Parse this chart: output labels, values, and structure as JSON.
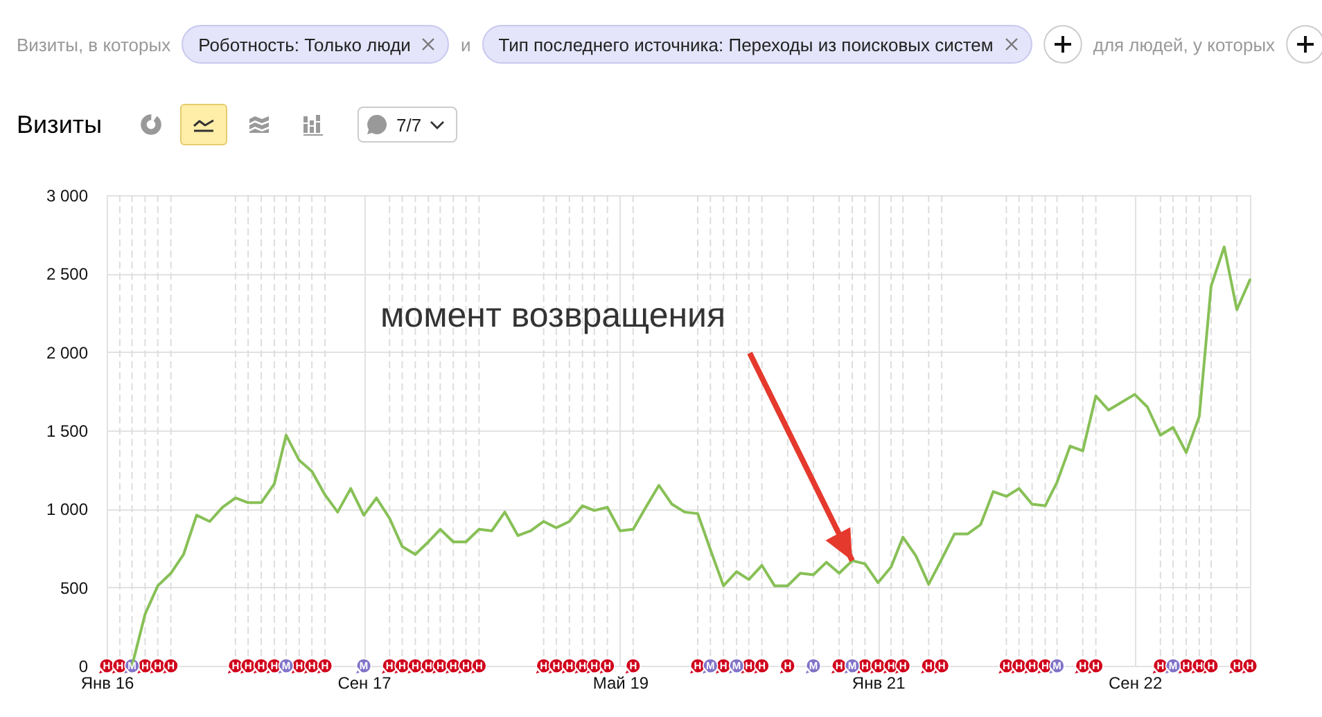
{
  "chart_data": {
    "type": "line",
    "title": "Визиты",
    "x": [
      "2016-03",
      "2016-04",
      "2016-05",
      "2016-06",
      "2016-07",
      "2016-08",
      "2016-09",
      "2016-10",
      "2016-11",
      "2016-12",
      "2017-01",
      "2017-02",
      "2017-03",
      "2017-04",
      "2017-05",
      "2017-06",
      "2017-07",
      "2017-08",
      "2017-09",
      "2017-10",
      "2017-11",
      "2017-12",
      "2018-01",
      "2018-02",
      "2018-03",
      "2018-04",
      "2018-05",
      "2018-06",
      "2018-07",
      "2018-08",
      "2018-09",
      "2018-10",
      "2018-11",
      "2018-12",
      "2019-01",
      "2019-02",
      "2019-03",
      "2019-04",
      "2019-05",
      "2019-06",
      "2019-07",
      "2019-08",
      "2019-09",
      "2019-10",
      "2019-11",
      "2019-12",
      "2020-01",
      "2020-02",
      "2020-03",
      "2020-04",
      "2020-05",
      "2020-06",
      "2020-07",
      "2020-08",
      "2020-09",
      "2020-10",
      "2020-11",
      "2020-12",
      "2021-01",
      "2021-02",
      "2021-03",
      "2021-04",
      "2021-05",
      "2021-06",
      "2021-07",
      "2021-08",
      "2021-09",
      "2021-10",
      "2021-11",
      "2021-12",
      "2022-01",
      "2022-02",
      "2022-03",
      "2022-04",
      "2022-05",
      "2022-06",
      "2022-07",
      "2022-08",
      "2022-09",
      "2022-10",
      "2022-11",
      "2022-12",
      "2023-01",
      "2023-02",
      "2023-03",
      "2023-04",
      "2023-05",
      "2023-06"
    ],
    "series": [
      {
        "type": "line",
        "color": "#88c057",
        "values": [
          0,
          330,
          510,
          590,
          710,
          960,
          920,
          1010,
          1070,
          1040,
          1040,
          1160,
          1470,
          1310,
          1240,
          1090,
          980,
          1130,
          960,
          1070,
          940,
          760,
          710,
          790,
          870,
          790,
          790,
          870,
          860,
          980,
          830,
          860,
          920,
          880,
          920,
          1020,
          990,
          1010,
          860,
          870,
          1010,
          1150,
          1030,
          980,
          970,
          740,
          510,
          600,
          550,
          640,
          510,
          510,
          590,
          580,
          660,
          590,
          670,
          650,
          530,
          630,
          820,
          700,
          520,
          680,
          840,
          840,
          900,
          1110,
          1080,
          1130,
          1030,
          1020,
          1170,
          1400,
          1370,
          1720,
          1630,
          1680,
          1730,
          1650,
          1470,
          1520,
          1360,
          1590,
          2420,
          2670,
          2270,
          2460
        ]
      },
      {
        "type": "scatter",
        "color": "#d0021b",
        "x": [
          "2016-01",
          "2016-02",
          "2016-04",
          "2016-05",
          "2016-06",
          "2016-11",
          "2016-12",
          "2017-01",
          "2017-02",
          "2017-04",
          "2017-05",
          "2017-06",
          "2017-11",
          "2017-12",
          "2018-01",
          "2018-02",
          "2018-03",
          "2018-04",
          "2018-05",
          "2018-06",
          "2018-11",
          "2018-12",
          "2019-01",
          "2019-02",
          "2019-03",
          "2019-04",
          "2019-06",
          "2019-11",
          "2020-01",
          "2020-03",
          "2020-04",
          "2020-06",
          "2020-10",
          "2020-12",
          "2021-01",
          "2021-02",
          "2021-03",
          "2021-05",
          "2021-06",
          "2021-11",
          "2021-12",
          "2022-01",
          "2022-02",
          "2022-05",
          "2022-06",
          "2022-11",
          "2023-01",
          "2023-02",
          "2023-03",
          "2023-05",
          "2023-06"
        ],
        "values": [
          0,
          0,
          0,
          0,
          0,
          0,
          0,
          0,
          0,
          0,
          0,
          0,
          0,
          0,
          0,
          0,
          0,
          0,
          0,
          0,
          0,
          0,
          0,
          0,
          0,
          0,
          0,
          0,
          0,
          0,
          0,
          0,
          0,
          0,
          0,
          0,
          0,
          0,
          0,
          0,
          0,
          0,
          0,
          0,
          0,
          0,
          0,
          0,
          0,
          0,
          0
        ],
        "value_labels": [
          "Н",
          "Н",
          "Н",
          "Н",
          "Н",
          "Н",
          "Н",
          "Н",
          "Н",
          "Н",
          "Н",
          "Н",
          "Н",
          "Н",
          "Н",
          "Н",
          "Н",
          "Н",
          "Н",
          "Н",
          "Н",
          "Н",
          "Н",
          "Н",
          "Н",
          "Н",
          "Н",
          "Н",
          "Н",
          "Н",
          "Н",
          "Н",
          "Н",
          "Н",
          "Н",
          "Н",
          "Н",
          "Н",
          "Н",
          "Н",
          "Н",
          "Н",
          "Н",
          "Н",
          "Н",
          "Н",
          "Н",
          "Н",
          "Н",
          "Н",
          "Н"
        ]
      },
      {
        "type": "scatter",
        "color": "#8073c8",
        "x": [
          "2016-03",
          "2017-03",
          "2017-09",
          "2019-12",
          "2020-02",
          "2020-08",
          "2020-11",
          "2022-03",
          "2022-12"
        ],
        "values": [
          0,
          0,
          0,
          0,
          0,
          0,
          0,
          0,
          0
        ],
        "value_labels": [
          "М",
          "М",
          "М",
          "М",
          "М",
          "М",
          "М",
          "М",
          "М"
        ]
      }
    ],
    "xlim": [
      "2016-01",
      "2023-06"
    ],
    "xticks": [
      {
        "value": "2016-01",
        "label": "Янв 16"
      },
      {
        "value": "2017-09",
        "label": "Сен 17"
      },
      {
        "value": "2019-05",
        "label": "Май 19"
      },
      {
        "value": "2021-01",
        "label": "Янв 21"
      },
      {
        "value": "2022-09",
        "label": "Сен 22"
      }
    ],
    "ylim": [
      0,
      3000
    ],
    "yticks": [
      0,
      500,
      {
        "value": 1000,
        "label": "1 000"
      },
      {
        "value": 1500,
        "label": "1 500"
      },
      {
        "value": 2000,
        "label": "2 000"
      },
      {
        "value": 2500,
        "label": "2 500"
      },
      {
        "value": 3000,
        "label": "3 000"
      }
    ],
    "grid": true,
    "ref_lines": [
      {
        "axis": "x",
        "value": "2016-02",
        "color": "#dddddd",
        "line_style": "dashed"
      },
      {
        "axis": "x",
        "value": "2016-03",
        "color": "#dddddd",
        "line_style": "dashed"
      },
      {
        "axis": "x",
        "value": "2016-04",
        "color": "#dddddd",
        "line_style": "dashed"
      },
      {
        "axis": "x",
        "value": "2016-05",
        "color": "#dddddd",
        "line_style": "dashed"
      },
      {
        "axis": "x",
        "value": "2016-06",
        "color": "#dddddd",
        "line_style": "dashed"
      },
      {
        "axis": "x",
        "value": "2016-11",
        "color": "#dddddd",
        "line_style": "dashed"
      },
      {
        "axis": "x",
        "value": "2016-12",
        "color": "#dddddd",
        "line_style": "dashed"
      },
      {
        "axis": "x",
        "value": "2017-01",
        "color": "#dddddd",
        "line_style": "dashed"
      },
      {
        "axis": "x",
        "value": "2017-02",
        "color": "#dddddd",
        "line_style": "dashed"
      },
      {
        "axis": "x",
        "value": "2017-03",
        "color": "#dddddd",
        "line_style": "dashed"
      },
      {
        "axis": "x",
        "value": "2017-04",
        "color": "#dddddd",
        "line_style": "dashed"
      },
      {
        "axis": "x",
        "value": "2017-05",
        "color": "#dddddd",
        "line_style": "dashed"
      },
      {
        "axis": "x",
        "value": "2017-06",
        "color": "#dddddd",
        "line_style": "dashed"
      },
      {
        "axis": "x",
        "value": "2017-11",
        "color": "#dddddd",
        "line_style": "dashed"
      },
      {
        "axis": "x",
        "value": "2017-12",
        "color": "#dddddd",
        "line_style": "dashed"
      },
      {
        "axis": "x",
        "value": "2018-01",
        "color": "#dddddd",
        "line_style": "dashed"
      },
      {
        "axis": "x",
        "value": "2018-02",
        "color": "#dddddd",
        "line_style": "dashed"
      },
      {
        "axis": "x",
        "value": "2018-03",
        "color": "#dddddd",
        "line_style": "dashed"
      },
      {
        "axis": "x",
        "value": "2018-04",
        "color": "#dddddd",
        "line_style": "dashed"
      },
      {
        "axis": "x",
        "value": "2018-05",
        "color": "#dddddd",
        "line_style": "dashed"
      },
      {
        "axis": "x",
        "value": "2018-06",
        "color": "#dddddd",
        "line_style": "dashed"
      },
      {
        "axis": "x",
        "value": "2018-11",
        "color": "#dddddd",
        "line_style": "dashed"
      },
      {
        "axis": "x",
        "value": "2018-12",
        "color": "#dddddd",
        "line_style": "dashed"
      },
      {
        "axis": "x",
        "value": "2019-01",
        "color": "#dddddd",
        "line_style": "dashed"
      },
      {
        "axis": "x",
        "value": "2019-02",
        "color": "#dddddd",
        "line_style": "dashed"
      },
      {
        "axis": "x",
        "value": "2019-03",
        "color": "#dddddd",
        "line_style": "dashed"
      },
      {
        "axis": "x",
        "value": "2019-04",
        "color": "#dddddd",
        "line_style": "dashed"
      },
      {
        "axis": "x",
        "value": "2019-06",
        "color": "#dddddd",
        "line_style": "dashed"
      },
      {
        "axis": "x",
        "value": "2019-11",
        "color": "#dddddd",
        "line_style": "dashed"
      },
      {
        "axis": "x",
        "value": "2019-12",
        "color": "#dddddd",
        "line_style": "dashed"
      },
      {
        "axis": "x",
        "value": "2020-01",
        "color": "#dddddd",
        "line_style": "dashed"
      },
      {
        "axis": "x",
        "value": "2020-02",
        "color": "#dddddd",
        "line_style": "dashed"
      },
      {
        "axis": "x",
        "value": "2020-03",
        "color": "#dddddd",
        "line_style": "dashed"
      },
      {
        "axis": "x",
        "value": "2020-04",
        "color": "#dddddd",
        "line_style": "dashed"
      },
      {
        "axis": "x",
        "value": "2020-06",
        "color": "#dddddd",
        "line_style": "dashed"
      },
      {
        "axis": "x",
        "value": "2020-08",
        "color": "#dddddd",
        "line_style": "dashed"
      },
      {
        "axis": "x",
        "value": "2020-10",
        "color": "#dddddd",
        "line_style": "dashed"
      },
      {
        "axis": "x",
        "value": "2020-11",
        "color": "#dddddd",
        "line_style": "dashed"
      },
      {
        "axis": "x",
        "value": "2020-12",
        "color": "#dddddd",
        "line_style": "dashed"
      },
      {
        "axis": "x",
        "value": "2021-02",
        "color": "#dddddd",
        "line_style": "dashed"
      },
      {
        "axis": "x",
        "value": "2021-03",
        "color": "#dddddd",
        "line_style": "dashed"
      },
      {
        "axis": "x",
        "value": "2021-05",
        "color": "#dddddd",
        "line_style": "dashed"
      },
      {
        "axis": "x",
        "value": "2021-06",
        "color": "#dddddd",
        "line_style": "dashed"
      },
      {
        "axis": "x",
        "value": "2021-11",
        "color": "#dddddd",
        "line_style": "dashed"
      },
      {
        "axis": "x",
        "value": "2021-12",
        "color": "#dddddd",
        "line_style": "dashed"
      },
      {
        "axis": "x",
        "value": "2022-01",
        "color": "#dddddd",
        "line_style": "dashed"
      },
      {
        "axis": "x",
        "value": "2022-02",
        "color": "#dddddd",
        "line_style": "dashed"
      },
      {
        "axis": "x",
        "value": "2022-03",
        "color": "#dddddd",
        "line_style": "dashed"
      },
      {
        "axis": "x",
        "value": "2022-05",
        "color": "#dddddd",
        "line_style": "dashed"
      },
      {
        "axis": "x",
        "value": "2022-06",
        "color": "#dddddd",
        "line_style": "dashed"
      },
      {
        "axis": "x",
        "value": "2022-11",
        "color": "#dddddd",
        "line_style": "dashed"
      },
      {
        "axis": "x",
        "value": "2022-12",
        "color": "#dddddd",
        "line_style": "dashed"
      },
      {
        "axis": "x",
        "value": "2023-01",
        "color": "#dddddd",
        "line_style": "dashed"
      },
      {
        "axis": "x",
        "value": "2023-02",
        "color": "#dddddd",
        "line_style": "dashed"
      },
      {
        "axis": "x",
        "value": "2023-03",
        "color": "#dddddd",
        "line_style": "dashed"
      },
      {
        "axis": "x",
        "value": "2023-05",
        "color": "#dddddd",
        "line_style": "dashed"
      }
    ],
    "annotations": [
      "Визиты, в которых",
      "Роботность: Только люди",
      "и",
      "Тип последнего источника: Переходы из поисковых систем",
      "для людей, у которых",
      "7/7",
      {
        "text": "момент возвращения",
        "x": "2020-11",
        "y": 670
      }
    ]
  }
}
